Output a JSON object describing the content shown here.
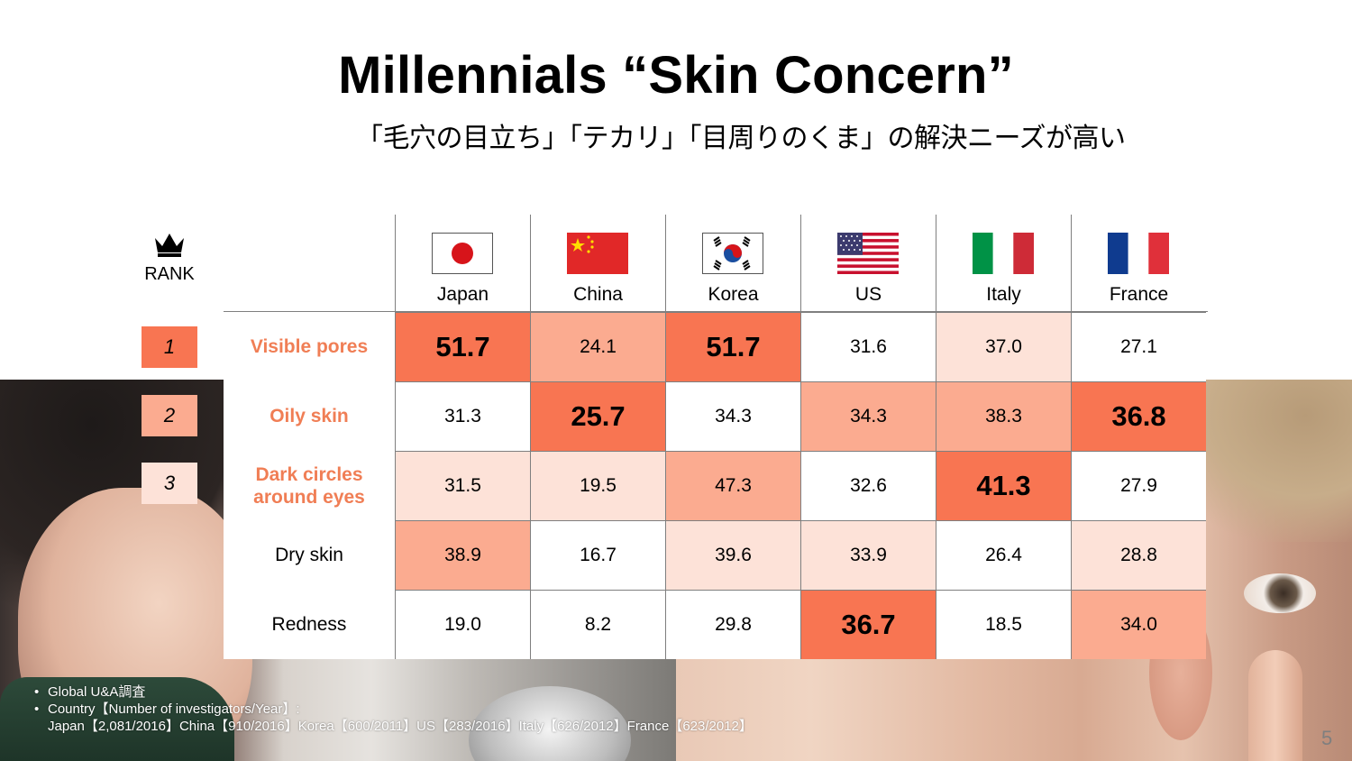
{
  "title": "Millennials “Skin Concern”",
  "subtitle": "「毛穴の目立ち」「テカリ」「目周りのくま」の解決ニーズが高い",
  "rank": {
    "label": "RANK",
    "items": [
      {
        "num": "1",
        "color": "#f87552"
      },
      {
        "num": "2",
        "color": "#fbab90"
      },
      {
        "num": "3",
        "color": "#fde2d8"
      }
    ]
  },
  "countries": [
    {
      "name": "Japan",
      "flag": "japan-flag-icon"
    },
    {
      "name": "China",
      "flag": "china-flag-icon"
    },
    {
      "name": "Korea",
      "flag": "korea-flag-icon"
    },
    {
      "name": "US",
      "flag": "us-flag-icon"
    },
    {
      "name": "Italy",
      "flag": "italy-flag-icon"
    },
    {
      "name": "France",
      "flag": "france-flag-icon"
    }
  ],
  "rows": [
    {
      "label": "Visible pores",
      "highlight": true,
      "values": [
        "51.7",
        "24.1",
        "51.7",
        "31.6",
        "37.0",
        "27.1"
      ],
      "rank": [
        1,
        2,
        1,
        0,
        3,
        0
      ]
    },
    {
      "label": "Oily skin",
      "highlight": true,
      "values": [
        "31.3",
        "25.7",
        "34.3",
        "34.3",
        "38.3",
        "36.8"
      ],
      "rank": [
        0,
        1,
        0,
        2,
        2,
        1
      ]
    },
    {
      "label": "Dark circles around eyes",
      "highlight": true,
      "values": [
        "31.5",
        "19.5",
        "47.3",
        "32.6",
        "41.3",
        "27.9"
      ],
      "rank": [
        3,
        3,
        2,
        0,
        1,
        0
      ]
    },
    {
      "label": "Dry skin",
      "highlight": false,
      "values": [
        "38.9",
        "16.7",
        "39.6",
        "33.9",
        "26.4",
        "28.8"
      ],
      "rank": [
        2,
        0,
        3,
        3,
        0,
        3
      ]
    },
    {
      "label": "Redness",
      "highlight": false,
      "values": [
        "19.0",
        "8.2",
        "29.8",
        "36.7",
        "18.5",
        "34.0"
      ],
      "rank": [
        0,
        0,
        0,
        1,
        0,
        2
      ]
    }
  ],
  "colors": {
    "rank1": "#f87552",
    "rank2": "#fbab90",
    "rank3": "#fde2d8",
    "label_highlight": "#f07e55",
    "grid": "#7f7f7f"
  },
  "notes": {
    "line1": "Global U&A調査",
    "line2": "Country【Number of investigators/Year】:",
    "line3": "Japan【2,081/2016】China【910/2016】Korea【600/2011】US【283/2016】Italy【626/2012】France【623/2012】"
  },
  "page_number": "5"
}
